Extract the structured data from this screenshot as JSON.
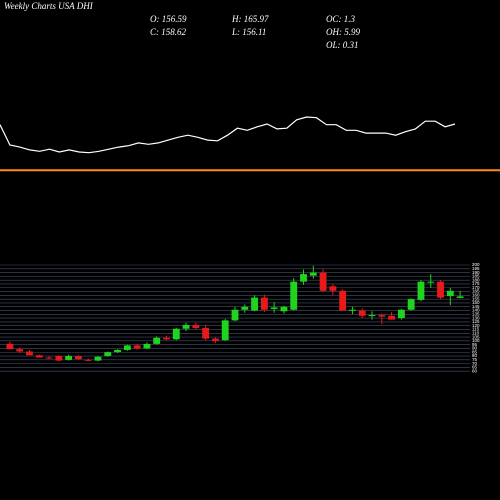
{
  "chart_data": {
    "type": "candlestick",
    "title": "Weekly Charts USA DHI",
    "header": [
      "O: 156.59",
      "H: 165.97",
      "OC: 1.3",
      "C: 158.62",
      "L: 156.11",
      "OH: 5.99",
      "OL: 0.31"
    ],
    "up_color": "#1fd41f",
    "down_color": "#e8191b",
    "grid_color": "#44506e",
    "ylim": [
      55,
      200
    ],
    "yticks": [
      60,
      65,
      70,
      75,
      80,
      85,
      90,
      95,
      100,
      105,
      110,
      115,
      120,
      125,
      130,
      135,
      140,
      145,
      150,
      155,
      160,
      165,
      170,
      175,
      180,
      185,
      190,
      195,
      200
    ],
    "grid": true,
    "open": [
      96,
      89,
      86,
      81,
      78,
      80,
      75,
      80,
      75,
      74,
      80,
      85,
      88,
      94,
      90,
      96,
      104,
      102,
      116,
      121,
      117,
      103,
      101,
      127,
      141,
      140,
      157,
      142,
      139,
      141,
      178,
      186,
      190,
      172,
      166,
      141,
      140,
      134,
      134,
      133,
      130,
      141,
      154,
      177,
      178,
      159,
      156.59
    ],
    "high": [
      99,
      91,
      88,
      82,
      80,
      81,
      82,
      81,
      77,
      80,
      86,
      89,
      95,
      96,
      98,
      106,
      107,
      117,
      124,
      124,
      121,
      105,
      129,
      145,
      148,
      160,
      161,
      151,
      146,
      183,
      194,
      199,
      195,
      175,
      168,
      145,
      143,
      139,
      136,
      138,
      142,
      156,
      180,
      188,
      180,
      170,
      165.97
    ],
    "low": [
      89,
      84,
      81,
      78,
      76,
      73,
      74,
      75,
      73,
      73,
      79,
      84,
      87,
      88,
      89,
      95,
      101,
      101,
      113,
      115,
      101,
      97,
      100,
      126,
      137,
      139,
      138,
      137,
      136,
      140,
      174,
      182,
      165,
      160,
      140,
      135,
      130,
      128,
      122,
      128,
      128,
      140,
      152,
      170,
      155,
      147,
      156.11
    ],
    "close": [
      89,
      86,
      81,
      78,
      77,
      74,
      80,
      76,
      74,
      79,
      85,
      88,
      94,
      90,
      96,
      104,
      102,
      116,
      121,
      117,
      103,
      100,
      127,
      141,
      145,
      157,
      141,
      144,
      145,
      178,
      188,
      190,
      166,
      166,
      140,
      141,
      133,
      134,
      132,
      128,
      141,
      155,
      178,
      178,
      157,
      166,
      158.62
    ],
    "indicator": {
      "color": "#ffffff",
      "ylim": [
        0,
        100
      ],
      "values": [
        79,
        50,
        47,
        43,
        41,
        44,
        40,
        43,
        40,
        39,
        41,
        44,
        47,
        49,
        53,
        51,
        53,
        57,
        61,
        64,
        61,
        57,
        56,
        64,
        74,
        71,
        76,
        80,
        73,
        74,
        86,
        90,
        89,
        79,
        79,
        71,
        71,
        67,
        67,
        67,
        64,
        69,
        73,
        84,
        84,
        76,
        80
      ],
      "level": 14,
      "level_color": "#ff8c1a"
    }
  }
}
